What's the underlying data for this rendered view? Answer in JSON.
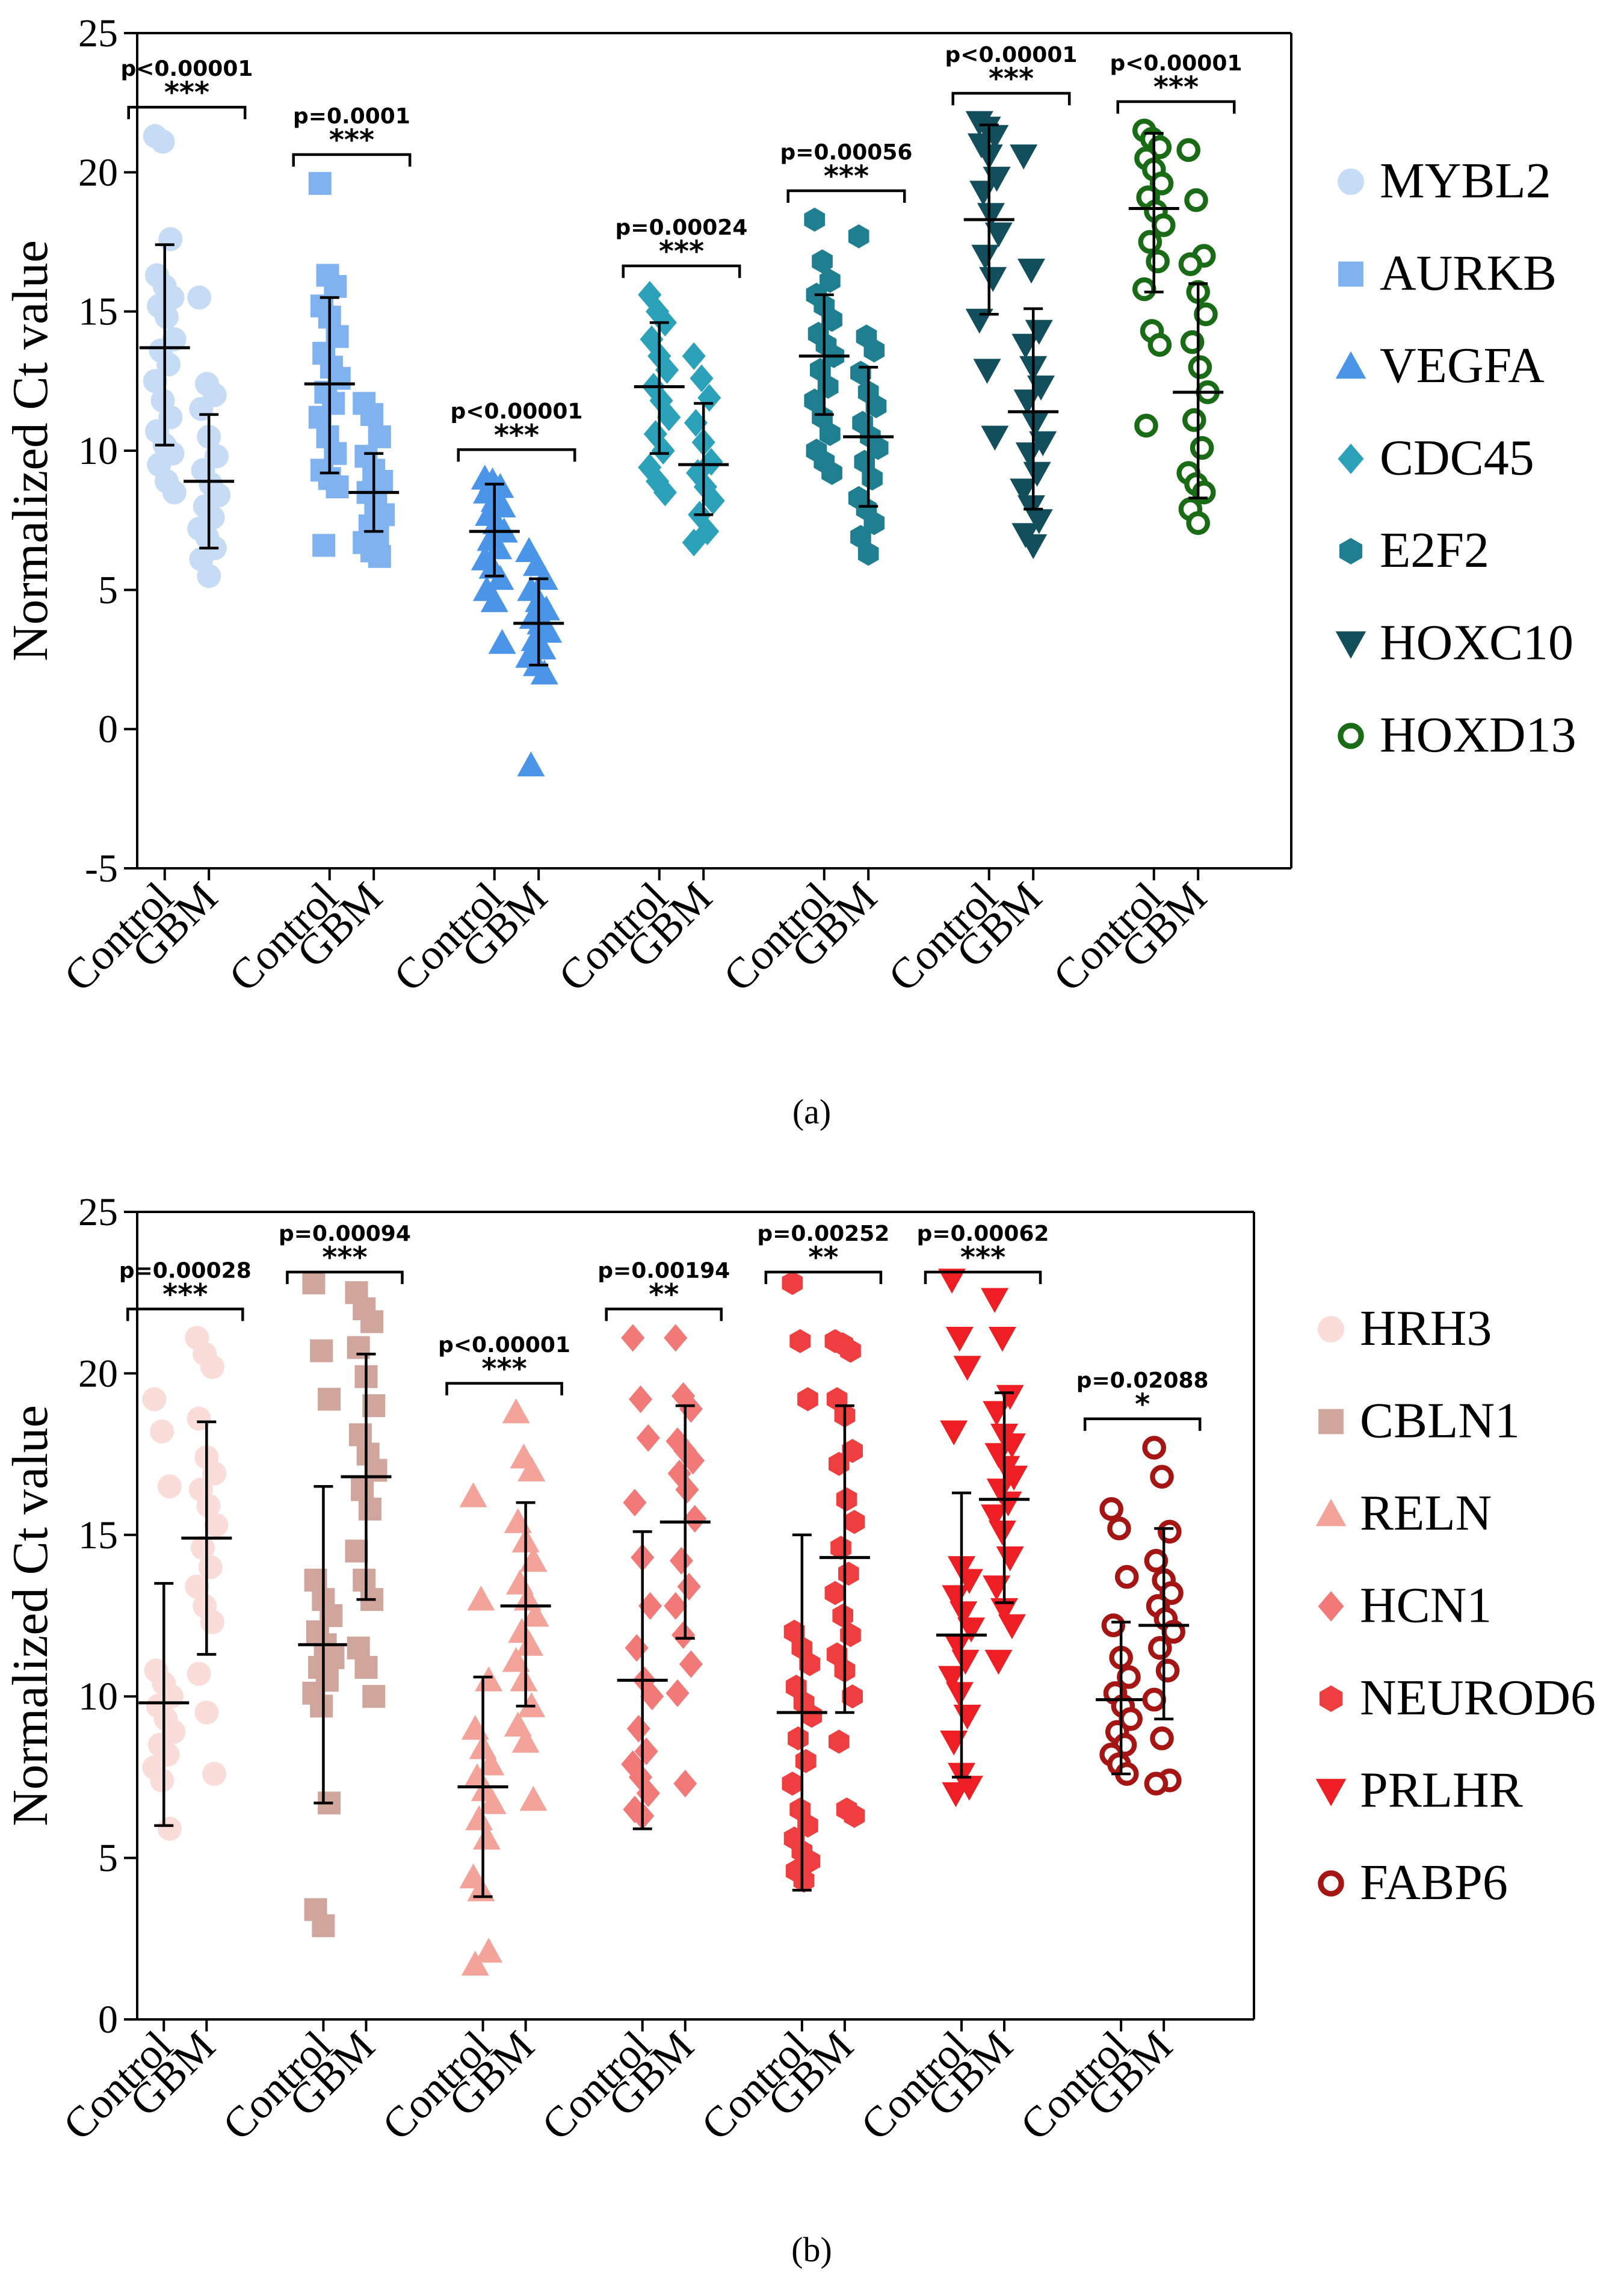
{
  "figure": {
    "caption_a": "(a)",
    "caption_b": "(b)"
  },
  "chart_data": [
    {
      "id": "a",
      "type": "scatter",
      "caption": "(a)",
      "ylabel": "Normalized Ct value",
      "ylim": [
        -5,
        25
      ],
      "yticks": [
        -5,
        0,
        5,
        10,
        15,
        20,
        25
      ],
      "categories": [
        "Control",
        "GBM"
      ],
      "grid": false,
      "legend_position": "right",
      "series": [
        {
          "name": "MYBL2",
          "color": "#c6dcf4",
          "marker": "circle",
          "filled": true,
          "groups": [
            {
              "label": "Control",
              "mean": 13.7,
              "sd_low": 10.2,
              "sd_high": 17.4,
              "values": [
                21.3,
                21.1,
                17.6,
                16.3,
                15.9,
                15.5,
                15.2,
                14.8,
                14.0,
                13.6,
                13.1,
                12.5,
                11.8,
                11.2,
                10.7,
                10.2,
                9.9,
                9.5,
                8.9,
                8.5
              ]
            },
            {
              "label": "GBM",
              "mean": 8.9,
              "sd_low": 6.5,
              "sd_high": 11.3,
              "values": [
                15.5,
                12.4,
                12.0,
                11.5,
                10.5,
                9.8,
                9.3,
                8.8,
                8.4,
                8.0,
                7.6,
                7.2,
                6.9,
                6.5,
                6.1,
                5.5
              ]
            }
          ]
        },
        {
          "name": "AURKB",
          "color": "#7fb2ef",
          "marker": "square",
          "filled": true,
          "groups": [
            {
              "label": "Control",
              "mean": 12.4,
              "sd_low": 9.2,
              "sd_high": 15.5,
              "values": [
                19.6,
                16.3,
                15.9,
                15.2,
                14.8,
                14.1,
                13.5,
                13.0,
                12.6,
                12.1,
                11.7,
                11.2,
                10.5,
                9.9,
                9.3,
                9.0,
                8.7,
                6.6
              ]
            },
            {
              "label": "GBM",
              "mean": 8.5,
              "sd_low": 7.1,
              "sd_high": 9.9,
              "values": [
                11.7,
                11.3,
                10.5,
                9.8,
                9.3,
                8.9,
                8.5,
                8.1,
                7.7,
                7.3,
                7.0,
                6.7,
                6.4,
                6.2
              ]
            }
          ]
        },
        {
          "name": "VEGFA",
          "color": "#4a95e8",
          "marker": "triangle-up",
          "filled": true,
          "groups": [
            {
              "label": "Control",
              "mean": 7.1,
              "sd_low": 5.5,
              "sd_high": 8.8,
              "values": [
                9.0,
                8.9,
                8.7,
                8.5,
                8.2,
                8.0,
                7.7,
                7.4,
                7.1,
                6.8,
                6.5,
                6.1,
                5.8,
                5.4,
                5.0,
                4.6,
                3.1
              ]
            },
            {
              "label": "GBM",
              "mean": 3.8,
              "sd_low": 2.3,
              "sd_high": 5.4,
              "values": [
                6.4,
                5.9,
                5.4,
                5.0,
                4.6,
                4.3,
                4.0,
                3.8,
                3.5,
                3.2,
                2.9,
                2.6,
                2.3,
                2.0,
                -1.3
              ]
            }
          ]
        },
        {
          "name": "CDC45",
          "color": "#2ba2b9",
          "marker": "diamond",
          "filled": true,
          "groups": [
            {
              "label": "Control",
              "mean": 12.3,
              "sd_low": 9.9,
              "sd_high": 14.6,
              "values": [
                15.6,
                15.0,
                14.6,
                14.0,
                13.4,
                12.9,
                12.3,
                11.8,
                11.2,
                10.6,
                10.0,
                9.4,
                8.9,
                8.5
              ]
            },
            {
              "label": "GBM",
              "mean": 9.5,
              "sd_low": 7.7,
              "sd_high": 11.7,
              "values": [
                13.4,
                12.6,
                11.9,
                11.0,
                10.3,
                9.6,
                9.2,
                8.7,
                8.2,
                7.7,
                7.1,
                6.7
              ]
            }
          ]
        },
        {
          "name": "E2F2",
          "color": "#1f7f91",
          "marker": "hexagon",
          "filled": true,
          "groups": [
            {
              "label": "Control",
              "mean": 13.4,
              "sd_low": 11.3,
              "sd_high": 15.6,
              "values": [
                18.3,
                16.8,
                16.1,
                15.6,
                15.2,
                14.7,
                14.2,
                13.8,
                13.4,
                12.9,
                12.3,
                11.8,
                11.2,
                10.6,
                10.0,
                9.6,
                9.2
              ]
            },
            {
              "label": "GBM",
              "mean": 10.5,
              "sd_low": 8.0,
              "sd_high": 13.0,
              "values": [
                17.7,
                14.1,
                13.6,
                12.8,
                12.1,
                11.6,
                11.0,
                10.5,
                10.1,
                9.6,
                9.0,
                8.3,
                7.9,
                7.4,
                6.9,
                6.3
              ]
            }
          ]
        },
        {
          "name": "HOXC10",
          "color": "#134e5c",
          "marker": "triangle-down",
          "filled": true,
          "groups": [
            {
              "label": "Control",
              "mean": 18.3,
              "sd_low": 14.9,
              "sd_high": 21.7,
              "values": [
                21.8,
                21.6,
                21.3,
                21.0,
                20.6,
                19.8,
                19.3,
                18.5,
                17.8,
                17.0,
                16.2,
                14.7,
                12.9,
                10.5
              ]
            },
            {
              "label": "GBM",
              "mean": 11.4,
              "sd_low": 7.9,
              "sd_high": 15.1,
              "values": [
                20.6,
                16.5,
                14.3,
                13.8,
                13.0,
                12.3,
                11.8,
                11.0,
                10.3,
                9.9,
                9.2,
                8.6,
                8.0,
                7.5,
                7.0,
                6.6
              ]
            }
          ]
        },
        {
          "name": "HOXD13",
          "color": "#1a6b16",
          "marker": "circle",
          "filled": false,
          "groups": [
            {
              "label": "Control",
              "mean": 18.7,
              "sd_low": 15.7,
              "sd_high": 21.4,
              "values": [
                21.5,
                21.2,
                20.9,
                20.5,
                20.1,
                19.6,
                19.1,
                18.6,
                18.1,
                17.5,
                16.8,
                15.8,
                14.3,
                13.8,
                10.9
              ]
            },
            {
              "label": "GBM",
              "mean": 12.1,
              "sd_low": 8.3,
              "sd_high": 16.0,
              "values": [
                20.8,
                19.0,
                17.0,
                16.7,
                15.7,
                14.9,
                13.9,
                13.0,
                12.1,
                11.1,
                10.1,
                9.2,
                8.8,
                8.5,
                7.9,
                7.4
              ]
            }
          ]
        }
      ],
      "annotations": [
        {
          "p": "p<0.00001",
          "stars": "***"
        },
        {
          "p": "p=0.0001",
          "stars": "***"
        },
        {
          "p": "p<0.00001",
          "stars": "***"
        },
        {
          "p": "p=0.00024",
          "stars": "***"
        },
        {
          "p": "p=0.00056",
          "stars": "***"
        },
        {
          "p": "p<0.00001",
          "stars": "***"
        },
        {
          "p": "p<0.00001",
          "stars": "***"
        }
      ]
    },
    {
      "id": "b",
      "type": "scatter",
      "caption": "(b)",
      "ylabel": "Normalized Ct value",
      "ylim": [
        0,
        25
      ],
      "yticks": [
        0,
        5,
        10,
        15,
        20,
        25
      ],
      "categories": [
        "Control",
        "GBM"
      ],
      "grid": false,
      "legend_position": "right",
      "series": [
        {
          "name": "HRH3",
          "color": "#fadcd8",
          "marker": "circle",
          "filled": true,
          "groups": [
            {
              "label": "Control",
              "mean": 9.8,
              "sd_low": 6.0,
              "sd_high": 13.5,
              "values": [
                19.2,
                18.2,
                16.5,
                10.8,
                10.4,
                10.0,
                9.7,
                9.3,
                8.9,
                8.5,
                8.2,
                7.8,
                7.4,
                5.9
              ]
            },
            {
              "label": "GBM",
              "mean": 14.9,
              "sd_low": 11.3,
              "sd_high": 18.5,
              "values": [
                21.1,
                20.6,
                20.2,
                18.6,
                17.4,
                16.9,
                16.4,
                15.9,
                15.3,
                14.6,
                14.0,
                13.4,
                12.8,
                12.3,
                10.7,
                9.5,
                7.6
              ]
            }
          ]
        },
        {
          "name": "CBLN1",
          "color": "#cfa59c",
          "marker": "square",
          "filled": true,
          "groups": [
            {
              "label": "Control",
              "mean": 11.6,
              "sd_low": 6.7,
              "sd_high": 16.5,
              "values": [
                22.8,
                20.7,
                19.2,
                13.6,
                13.0,
                12.5,
                12.0,
                11.6,
                11.2,
                10.9,
                10.5,
                10.1,
                9.7,
                6.7,
                3.4,
                2.9
              ]
            },
            {
              "label": "GBM",
              "mean": 16.8,
              "sd_low": 13.0,
              "sd_high": 20.6,
              "values": [
                22.5,
                22.0,
                21.6,
                20.8,
                19.9,
                19.0,
                18.1,
                17.5,
                17.0,
                16.4,
                15.8,
                14.5,
                13.6,
                13.0,
                11.5,
                10.9,
                10.0
              ]
            }
          ]
        },
        {
          "name": "RELN",
          "color": "#f4a39b",
          "marker": "triangle-up",
          "filled": true,
          "groups": [
            {
              "label": "Control",
              "mean": 7.2,
              "sd_low": 3.8,
              "sd_high": 10.6,
              "values": [
                16.2,
                13.0,
                10.5,
                9.0,
                8.4,
                7.9,
                7.5,
                7.1,
                6.7,
                6.2,
                5.6,
                4.4,
                4.0,
                2.1,
                1.7
              ]
            },
            {
              "label": "GBM",
              "mean": 12.8,
              "sd_low": 9.7,
              "sd_high": 16.0,
              "values": [
                18.8,
                17.4,
                17.0,
                15.4,
                14.8,
                14.2,
                13.5,
                13.0,
                12.5,
                12.0,
                11.6,
                11.1,
                10.5,
                9.7,
                9.1,
                8.6,
                6.8
              ]
            }
          ]
        },
        {
          "name": "HCN1",
          "color": "#f17a78",
          "marker": "diamond",
          "filled": true,
          "groups": [
            {
              "label": "Control",
              "mean": 10.5,
              "sd_low": 5.9,
              "sd_high": 15.1,
              "values": [
                21.1,
                19.2,
                18.0,
                16.0,
                14.3,
                12.8,
                11.5,
                10.5,
                10.0,
                9.0,
                8.3,
                7.9,
                7.5,
                7.0,
                6.5,
                6.3
              ]
            },
            {
              "label": "GBM",
              "mean": 15.4,
              "sd_low": 11.8,
              "sd_high": 19.0,
              "values": [
                21.1,
                19.3,
                18.9,
                17.9,
                17.6,
                17.3,
                16.9,
                16.4,
                15.5,
                14.2,
                13.4,
                12.8,
                11.9,
                11.0,
                10.1,
                7.3
              ]
            }
          ]
        },
        {
          "name": "NEUROD6",
          "color": "#ee3e40",
          "marker": "hexagon",
          "filled": true,
          "groups": [
            {
              "label": "Control",
              "mean": 9.5,
              "sd_low": 4.0,
              "sd_high": 15.0,
              "values": [
                22.8,
                21.0,
                19.2,
                12.0,
                11.5,
                11.0,
                10.3,
                9.8,
                9.4,
                8.7,
                8.0,
                7.3,
                6.5,
                6.0,
                5.6,
                5.2,
                4.9,
                4.6,
                4.3
              ]
            },
            {
              "label": "GBM",
              "mean": 14.3,
              "sd_low": 9.5,
              "sd_high": 19.0,
              "values": [
                21.0,
                20.9,
                20.7,
                19.2,
                18.7,
                17.6,
                17.2,
                16.1,
                15.4,
                14.6,
                13.8,
                13.2,
                12.5,
                11.9,
                11.3,
                10.8,
                10.0,
                8.6,
                6.5,
                6.3
              ]
            }
          ]
        },
        {
          "name": "PRLHR",
          "color": "#ee1f24",
          "marker": "triangle-down",
          "filled": true,
          "groups": [
            {
              "label": "Control",
              "mean": 11.9,
              "sd_low": 7.5,
              "sd_high": 16.3,
              "values": [
                22.9,
                21.1,
                20.2,
                18.2,
                14.0,
                13.6,
                13.1,
                12.6,
                12.1,
                11.6,
                11.1,
                10.6,
                10.1,
                9.4,
                8.6,
                7.6,
                7.2,
                7.0
              ]
            },
            {
              "label": "GBM",
              "mean": 16.1,
              "sd_low": 12.9,
              "sd_high": 19.4,
              "values": [
                22.3,
                21.1,
                19.3,
                18.8,
                18.1,
                17.8,
                17.5,
                17.1,
                16.8,
                16.4,
                16.0,
                15.6,
                15.1,
                14.3,
                13.4,
                12.7,
                12.2,
                11.1
              ]
            }
          ]
        },
        {
          "name": "FABP6",
          "color": "#a51514",
          "marker": "circle",
          "filled": false,
          "groups": [
            {
              "label": "Control",
              "mean": 9.9,
              "sd_low": 7.6,
              "sd_high": 12.3,
              "values": [
                15.8,
                15.2,
                13.7,
                12.2,
                11.2,
                10.6,
                10.1,
                9.7,
                9.3,
                8.9,
                8.5,
                8.2,
                7.9,
                7.6
              ]
            },
            {
              "label": "GBM",
              "mean": 12.2,
              "sd_low": 9.3,
              "sd_high": 15.2,
              "values": [
                17.7,
                16.8,
                15.1,
                14.2,
                13.6,
                13.2,
                12.8,
                12.4,
                12.0,
                11.5,
                10.8,
                9.9,
                8.7,
                7.4,
                7.3
              ]
            }
          ]
        }
      ],
      "annotations": [
        {
          "p": "p=0.00028",
          "stars": "***"
        },
        {
          "p": "p=0.00094",
          "stars": "***"
        },
        {
          "p": "p<0.00001",
          "stars": "***"
        },
        {
          "p": "p=0.00194",
          "stars": "**"
        },
        {
          "p": "p=0.00252",
          "stars": "**"
        },
        {
          "p": "p=0.00062",
          "stars": "***"
        },
        {
          "p": "p=0.02088",
          "stars": "*"
        }
      ]
    }
  ]
}
